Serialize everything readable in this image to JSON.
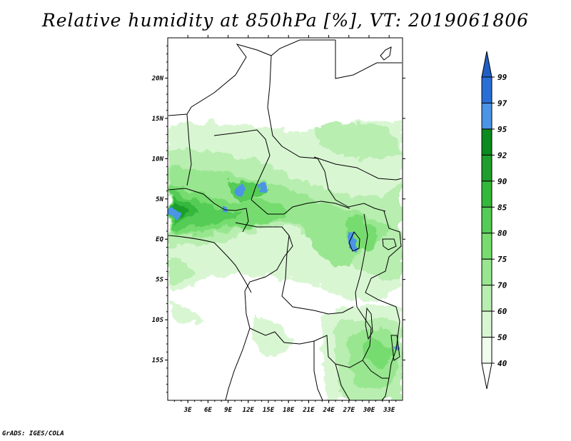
{
  "title": "Relative humidity at 850hPa [%], VT: 2019061806",
  "credit": "GrADS: IGES/COLA",
  "map": {
    "lat_ticks": [
      "20N",
      "15N",
      "10N",
      "5N",
      "EQ",
      "5S",
      "10S",
      "15S"
    ],
    "lon_ticks": [
      "3E",
      "6E",
      "9E",
      "12E",
      "15E",
      "18E",
      "21E",
      "24E",
      "27E",
      "30E",
      "33E"
    ],
    "projection": "latlon",
    "lon_range_deg_E": [
      0,
      35
    ],
    "lat_range_deg": [
      -20,
      25
    ]
  },
  "colorbar": {
    "labels": [
      "99",
      "97",
      "95",
      "92",
      "90",
      "85",
      "80",
      "75",
      "70",
      "60",
      "50",
      "40"
    ],
    "levels": [
      40,
      50,
      60,
      70,
      75,
      80,
      85,
      90,
      92,
      95,
      97,
      99
    ],
    "colors": [
      "#ffffff",
      "#f0fcee",
      "#d9f6d3",
      "#b8eeb0",
      "#99e690",
      "#77dc70",
      "#54cc55",
      "#34b83c",
      "#1f9e2c",
      "#0b8a1e",
      "#4c94e6",
      "#2a6fd6",
      "#1f5fc4"
    ]
  }
}
